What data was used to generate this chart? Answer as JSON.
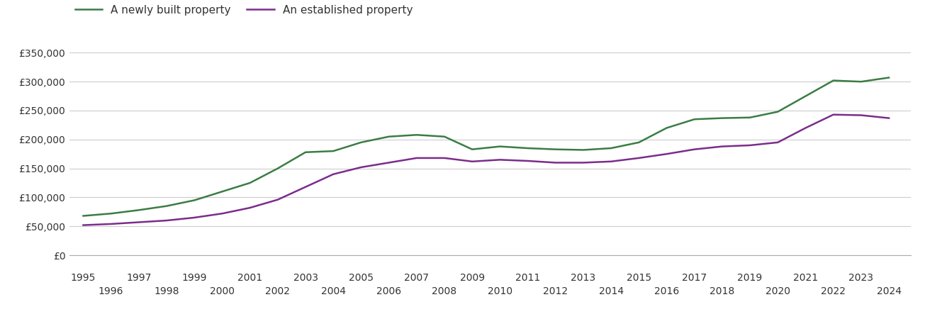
{
  "years": [
    1995,
    1996,
    1997,
    1998,
    1999,
    2000,
    2001,
    2002,
    2003,
    2004,
    2005,
    2006,
    2007,
    2008,
    2009,
    2010,
    2011,
    2012,
    2013,
    2014,
    2015,
    2016,
    2017,
    2018,
    2019,
    2020,
    2021,
    2022,
    2023,
    2024
  ],
  "new_build": [
    68000,
    72000,
    78000,
    85000,
    95000,
    110000,
    125000,
    150000,
    178000,
    180000,
    195000,
    205000,
    208000,
    205000,
    183000,
    188000,
    185000,
    183000,
    182000,
    185000,
    195000,
    220000,
    235000,
    237000,
    238000,
    248000,
    275000,
    302000,
    300000,
    307000
  ],
  "established": [
    52000,
    54000,
    57000,
    60000,
    65000,
    72000,
    82000,
    96000,
    118000,
    140000,
    152000,
    160000,
    168000,
    168000,
    162000,
    165000,
    163000,
    160000,
    160000,
    162000,
    168000,
    175000,
    183000,
    188000,
    190000,
    195000,
    220000,
    243000,
    242000,
    237000
  ],
  "new_build_color": "#3a7d44",
  "established_color": "#7b2d8b",
  "legend_new": "A newly built property",
  "legend_established": "An established property",
  "yticks": [
    0,
    50000,
    100000,
    150000,
    200000,
    250000,
    300000,
    350000
  ],
  "ylim": [
    0,
    375000
  ],
  "xlim_left": 1994.5,
  "xlim_right": 2024.8,
  "background_color": "#ffffff",
  "grid_color": "#cccccc",
  "line_width": 1.8,
  "tick_fontsize": 10,
  "legend_fontsize": 11
}
